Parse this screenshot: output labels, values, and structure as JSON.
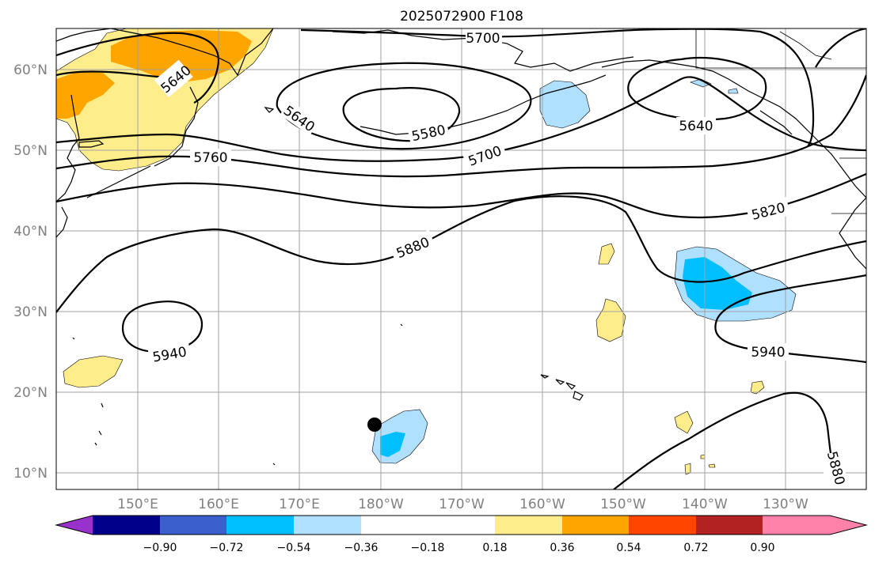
{
  "title": "2025072900 F108",
  "lat_labels": [
    "60°N",
    "50°N",
    "40°N",
    "30°N",
    "20°N",
    "10°N"
  ],
  "lon_labels": [
    "150°E",
    "160°E",
    "170°E",
    "180°W",
    "170°W",
    "160°W",
    "150°W",
    "140°W",
    "130°W"
  ],
  "contour_labels": [
    "5700",
    "5640",
    "5640",
    "5580",
    "5640",
    "5760",
    "5700",
    "5820",
    "5880",
    "5940",
    "5940",
    "5880"
  ],
  "colorbar": {
    "ticks": [
      "−0.90",
      "−0.72",
      "−0.54",
      "−0.36",
      "−0.18",
      "0.18",
      "0.36",
      "0.54",
      "0.72",
      "0.90"
    ],
    "colors": {
      "under": "#9932cc",
      "bins": [
        "#00008b",
        "#3a5fcd",
        "#00bfff",
        "#b0e0ff",
        "#ffffff",
        "#ffec8b",
        "#ffa500",
        "#ff4500",
        "#b22222"
      ],
      "over": "#ff82ab"
    }
  },
  "shading_colors": {
    "light_yellow": "#ffec8b",
    "orange": "#ffa500",
    "light_blue": "#b0e0ff",
    "blue": "#00bfff"
  },
  "marker": {
    "type": "storm-position",
    "lat": 16,
    "lon": -179
  }
}
